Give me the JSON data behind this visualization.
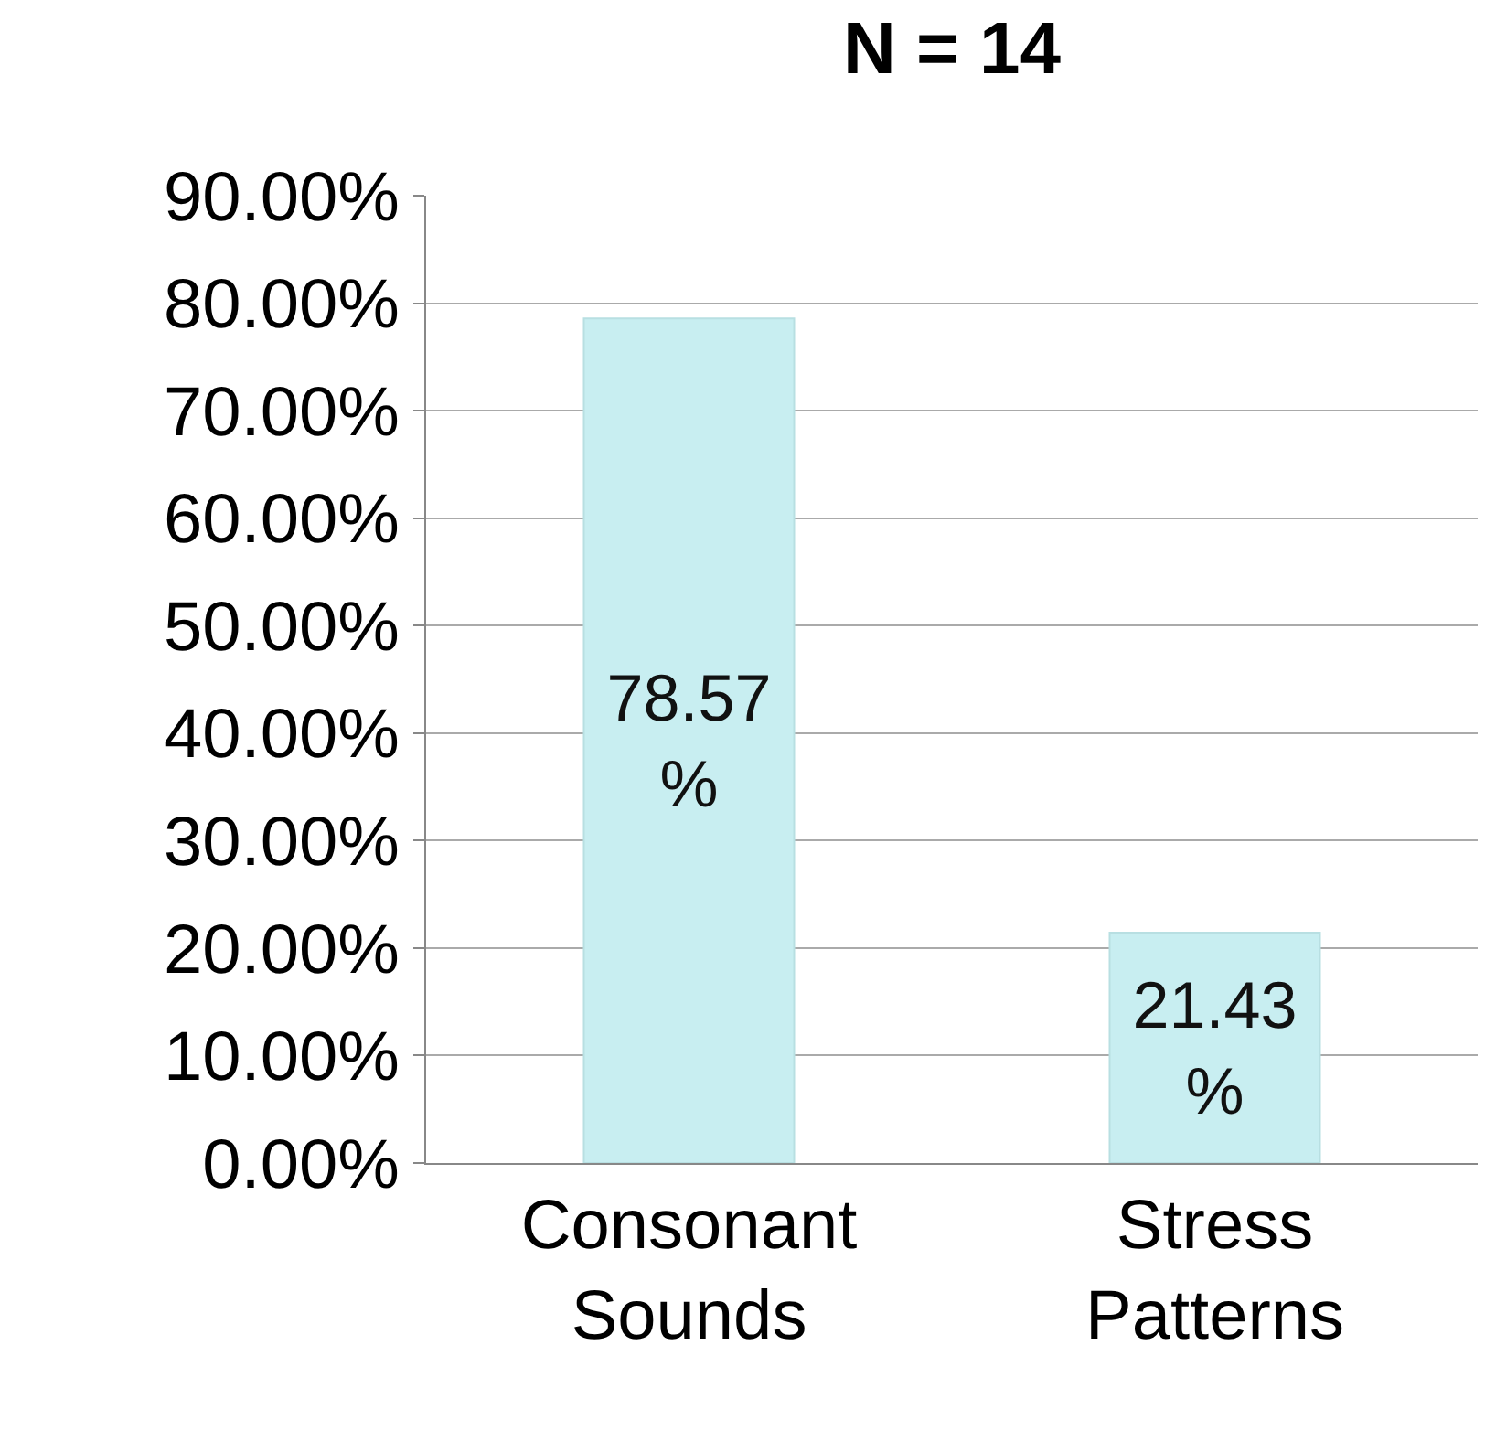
{
  "chart_data": {
    "type": "bar",
    "title": "N = 14",
    "categories": [
      "Consonant Sounds",
      "Stress Patterns"
    ],
    "values": [
      78.57,
      21.43
    ],
    "color": "#c8eef1",
    "value_labels": [
      "78.57%",
      "21.43%"
    ],
    "ylim": [
      0,
      90
    ],
    "yticks": [
      {
        "value": 0,
        "label": "0.00%"
      },
      {
        "value": 10,
        "label": "10.00%"
      },
      {
        "value": 20,
        "label": "20.00%"
      },
      {
        "value": 30,
        "label": "30.00%"
      },
      {
        "value": 40,
        "label": "40.00%"
      },
      {
        "value": 50,
        "label": "50.00%"
      },
      {
        "value": 60,
        "label": "60.00%"
      },
      {
        "value": 70,
        "label": "70.00%"
      },
      {
        "value": 80,
        "label": "80.00%"
      },
      {
        "value": 90,
        "label": "90.00%"
      }
    ],
    "grid": "y"
  }
}
